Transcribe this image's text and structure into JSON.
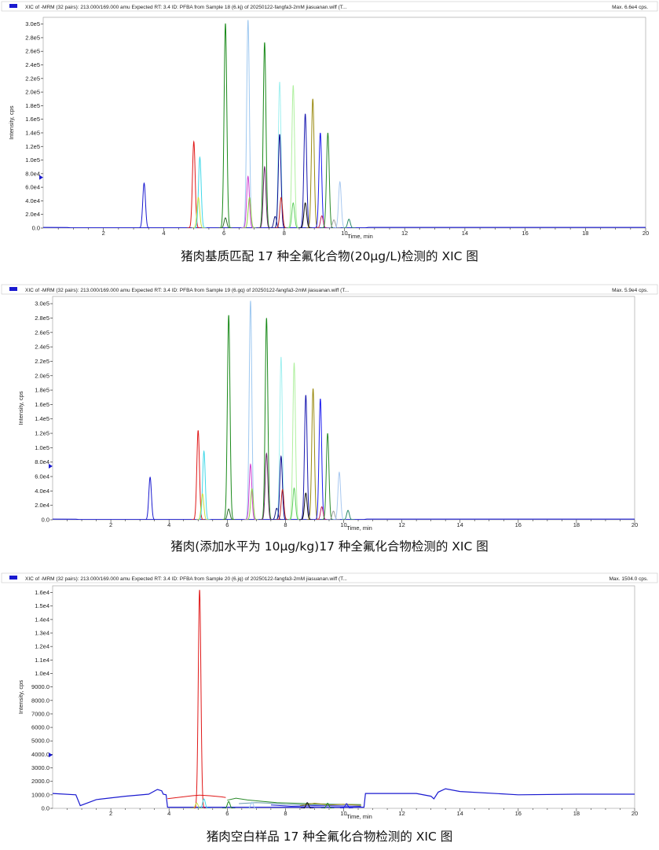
{
  "chart_data": [
    {
      "type": "line",
      "header": "XIC of -MRM (32 pairs): 213.000/169.000 amu Expected RT: 3.4 ID: PFBA from Sample 18 (6.kj) of 20250122-fangfa3-2mM jiasuanan.wiff (T...",
      "max_label": "Max. 6.6e4 cps.",
      "caption": "猪肉基质匹配 17 种全氟化合物(20μg/L)检测的 XIC 图",
      "xlabel": "Time, min",
      "ylabel": "Intensity, cps",
      "xlim": [
        0,
        20
      ],
      "ylim": [
        0,
        310000
      ],
      "x_ticks": [
        "2",
        "4",
        "6",
        "8",
        "10",
        "12",
        "14",
        "16",
        "18",
        "20"
      ],
      "y_ticks": [
        {
          "value": 0,
          "label": "0.0"
        },
        {
          "value": 20000,
          "label": "2.0e4"
        },
        {
          "value": 40000,
          "label": "4.0e4"
        },
        {
          "value": 60000,
          "label": "6.0e4"
        },
        {
          "value": 80000,
          "label": "8.0e4"
        },
        {
          "value": 100000,
          "label": "1.0e5"
        },
        {
          "value": 120000,
          "label": "1.2e5"
        },
        {
          "value": 140000,
          "label": "1.4e5"
        },
        {
          "value": 160000,
          "label": "1.6e5"
        },
        {
          "value": 180000,
          "label": "1.8e5"
        },
        {
          "value": 200000,
          "label": "2.0e5"
        },
        {
          "value": 220000,
          "label": "2.2e5"
        },
        {
          "value": 240000,
          "label": "2.4e5"
        },
        {
          "value": 260000,
          "label": "2.6e5"
        },
        {
          "value": 280000,
          "label": "2.8e5"
        },
        {
          "value": 300000,
          "label": "3.0e5"
        }
      ],
      "baseline": [
        {
          "x": 0,
          "y": 900
        },
        {
          "x": 0.8,
          "y": 800
        },
        {
          "x": 0.9,
          "y": 300
        },
        {
          "x": 10.7,
          "y": 300
        },
        {
          "x": 10.8,
          "y": 900
        },
        {
          "x": 20,
          "y": 900
        }
      ],
      "peaks": [
        {
          "rt": 3.35,
          "height": 66000,
          "color": "#1a1ad0"
        },
        {
          "rt": 5.0,
          "height": 127000,
          "color": "#e01818"
        },
        {
          "rt": 5.2,
          "height": 104000,
          "color": "#40d8e8"
        },
        {
          "rt": 5.15,
          "height": 45000,
          "color": "#c8e040"
        },
        {
          "rt": 6.05,
          "height": 301000,
          "color": "#1a8a1a"
        },
        {
          "rt": 6.05,
          "height": 15000,
          "color": "#2a6a2a"
        },
        {
          "rt": 6.8,
          "height": 306000,
          "color": "#9ec8f0"
        },
        {
          "rt": 6.8,
          "height": 76000,
          "color": "#d040d0"
        },
        {
          "rt": 6.85,
          "height": 45000,
          "color": "#90d040"
        },
        {
          "rt": 7.35,
          "height": 273000,
          "color": "#1a8a1a"
        },
        {
          "rt": 7.35,
          "height": 90000,
          "color": "#6a2a6a"
        },
        {
          "rt": 7.7,
          "height": 17000,
          "color": "#1a1a80"
        },
        {
          "rt": 7.85,
          "height": 215000,
          "color": "#a0f0f0"
        },
        {
          "rt": 7.85,
          "height": 138000,
          "color": "#0a0a90"
        },
        {
          "rt": 7.9,
          "height": 45000,
          "color": "#c02020"
        },
        {
          "rt": 8.3,
          "height": 210000,
          "color": "#b0f0a0"
        },
        {
          "rt": 8.3,
          "height": 37000,
          "color": "#60d060"
        },
        {
          "rt": 8.7,
          "height": 168000,
          "color": "#1a1ab0"
        },
        {
          "rt": 8.7,
          "height": 37000,
          "color": "#111111"
        },
        {
          "rt": 8.95,
          "height": 190000,
          "color": "#9a8a10"
        },
        {
          "rt": 9.2,
          "height": 140000,
          "color": "#1a1af0"
        },
        {
          "rt": 9.25,
          "height": 18000,
          "color": "#c02060"
        },
        {
          "rt": 9.45,
          "height": 140000,
          "color": "#2a8a2a"
        },
        {
          "rt": 9.65,
          "height": 12000,
          "color": "#a0a0a0"
        },
        {
          "rt": 9.85,
          "height": 68000,
          "color": "#a8c8f0"
        },
        {
          "rt": 10.15,
          "height": 13000,
          "color": "#2a8a6a"
        }
      ]
    },
    {
      "type": "line",
      "header": "XIC of -MRM (32 pairs): 213.000/169.000 amu Expected RT: 3.4 ID: PFBA from Sample 19 (6.gq) of 20250122-fangfa3-2mM jiasuanan.wiff (T...",
      "max_label": "Max. 5.9e4 cps.",
      "caption": "猪肉(添加水平为 10μg/kg)17 种全氟化合物检测的 XIC 图",
      "xlabel": "Time, min",
      "ylabel": "Intensity, cps",
      "xlim": [
        0,
        20
      ],
      "ylim": [
        0,
        310000
      ],
      "x_ticks": [
        "2",
        "4",
        "6",
        "8",
        "10",
        "12",
        "14",
        "16",
        "18",
        "20"
      ],
      "y_ticks": [
        {
          "value": 0,
          "label": "0.0"
        },
        {
          "value": 20000,
          "label": "2.0e4"
        },
        {
          "value": 40000,
          "label": "4.0e4"
        },
        {
          "value": 60000,
          "label": "6.0e4"
        },
        {
          "value": 80000,
          "label": "8.0e4"
        },
        {
          "value": 100000,
          "label": "1.0e5"
        },
        {
          "value": 120000,
          "label": "1.2e5"
        },
        {
          "value": 140000,
          "label": "1.4e5"
        },
        {
          "value": 160000,
          "label": "1.6e5"
        },
        {
          "value": 180000,
          "label": "1.8e5"
        },
        {
          "value": 200000,
          "label": "2.0e5"
        },
        {
          "value": 220000,
          "label": "2.2e5"
        },
        {
          "value": 240000,
          "label": "2.4e5"
        },
        {
          "value": 260000,
          "label": "2.6e5"
        },
        {
          "value": 280000,
          "label": "2.8e5"
        },
        {
          "value": 300000,
          "label": "3.0e5"
        }
      ],
      "baseline": [
        {
          "x": 0,
          "y": 900
        },
        {
          "x": 0.8,
          "y": 800
        },
        {
          "x": 0.9,
          "y": 300
        },
        {
          "x": 10.7,
          "y": 300
        },
        {
          "x": 10.8,
          "y": 900
        },
        {
          "x": 20,
          "y": 900
        }
      ],
      "peaks": [
        {
          "rt": 3.35,
          "height": 59000,
          "color": "#1a1ad0"
        },
        {
          "rt": 5.0,
          "height": 124000,
          "color": "#e01818"
        },
        {
          "rt": 5.2,
          "height": 95000,
          "color": "#40d8e8"
        },
        {
          "rt": 5.15,
          "height": 36000,
          "color": "#c8e040"
        },
        {
          "rt": 6.05,
          "height": 284000,
          "color": "#1a8a1a"
        },
        {
          "rt": 6.05,
          "height": 15000,
          "color": "#2a6a2a"
        },
        {
          "rt": 6.8,
          "height": 304000,
          "color": "#9ec8f0"
        },
        {
          "rt": 6.8,
          "height": 77000,
          "color": "#d040d0"
        },
        {
          "rt": 6.85,
          "height": 43000,
          "color": "#90d040"
        },
        {
          "rt": 7.35,
          "height": 280000,
          "color": "#1a8a1a"
        },
        {
          "rt": 7.35,
          "height": 92000,
          "color": "#6a2a6a"
        },
        {
          "rt": 7.7,
          "height": 16000,
          "color": "#1a1a80"
        },
        {
          "rt": 7.85,
          "height": 226000,
          "color": "#a0f0f0"
        },
        {
          "rt": 7.85,
          "height": 88000,
          "color": "#0a0a90"
        },
        {
          "rt": 7.9,
          "height": 42000,
          "color": "#c02020"
        },
        {
          "rt": 8.3,
          "height": 218000,
          "color": "#b0f0a0"
        },
        {
          "rt": 8.3,
          "height": 44000,
          "color": "#60d060"
        },
        {
          "rt": 8.7,
          "height": 173000,
          "color": "#1a1ab0"
        },
        {
          "rt": 8.7,
          "height": 37000,
          "color": "#111111"
        },
        {
          "rt": 8.95,
          "height": 182000,
          "color": "#9a8a10"
        },
        {
          "rt": 9.2,
          "height": 168000,
          "color": "#1a1af0"
        },
        {
          "rt": 9.25,
          "height": 18000,
          "color": "#c02060"
        },
        {
          "rt": 9.45,
          "height": 120000,
          "color": "#2a8a2a"
        },
        {
          "rt": 9.65,
          "height": 12000,
          "color": "#a0a0a0"
        },
        {
          "rt": 9.85,
          "height": 66000,
          "color": "#a8c8f0"
        },
        {
          "rt": 10.15,
          "height": 13000,
          "color": "#2a8a6a"
        }
      ]
    },
    {
      "type": "line",
      "header": "XIC of -MRM (32 pairs): 213.000/169.000 amu Expected RT: 3.4 ID: PFBA from Sample 20 (6.jq) of 20250122-fangfa3-2mM jiasuanan.wiff (T...",
      "max_label": "Max. 1504.0 cps.",
      "caption": "猪肉空白样品 17 种全氟化合物检测的 XIC 图",
      "xlabel": "Time, min",
      "ylabel": "Intensity, cps",
      "xlim": [
        0,
        20
      ],
      "ylim": [
        0,
        16500
      ],
      "x_ticks": [
        "2",
        "4",
        "6",
        "8",
        "10",
        "12",
        "14",
        "16",
        "18",
        "20"
      ],
      "y_ticks": [
        {
          "value": 0,
          "label": "0.0"
        },
        {
          "value": 1000,
          "label": "1000.0"
        },
        {
          "value": 2000,
          "label": "2000.0"
        },
        {
          "value": 3000,
          "label": "3000.0"
        },
        {
          "value": 4000,
          "label": "4000.0"
        },
        {
          "value": 5000,
          "label": "5000.0"
        },
        {
          "value": 6000,
          "label": "6000.0"
        },
        {
          "value": 7000,
          "label": "7000.0"
        },
        {
          "value": 8000,
          "label": "8000.0"
        },
        {
          "value": 9000,
          "label": "9000.0"
        },
        {
          "value": 10000,
          "label": "1.0e4"
        },
        {
          "value": 11000,
          "label": "1.1e4"
        },
        {
          "value": 12000,
          "label": "1.2e4"
        },
        {
          "value": 13000,
          "label": "1.3e4"
        },
        {
          "value": 14000,
          "label": "1.4e4"
        },
        {
          "value": 15000,
          "label": "1.5e4"
        },
        {
          "value": 16000,
          "label": "1.6e4"
        }
      ],
      "baseline": [
        {
          "x": 0,
          "y": 1100
        },
        {
          "x": 0.8,
          "y": 1000
        },
        {
          "x": 0.95,
          "y": 200
        },
        {
          "x": 1.5,
          "y": 650
        },
        {
          "x": 2.5,
          "y": 900
        },
        {
          "x": 3.3,
          "y": 1050
        },
        {
          "x": 3.6,
          "y": 1400
        },
        {
          "x": 3.75,
          "y": 1300
        },
        {
          "x": 3.8,
          "y": 1050
        },
        {
          "x": 3.9,
          "y": 1000
        },
        {
          "x": 3.95,
          "y": 80
        },
        {
          "x": 10.7,
          "y": 80
        },
        {
          "x": 10.75,
          "y": 1100
        },
        {
          "x": 12.5,
          "y": 1100
        },
        {
          "x": 13.0,
          "y": 900
        },
        {
          "x": 13.1,
          "y": 700
        },
        {
          "x": 13.25,
          "y": 1200
        },
        {
          "x": 13.5,
          "y": 1450
        },
        {
          "x": 14.0,
          "y": 1250
        },
        {
          "x": 16.0,
          "y": 1000
        },
        {
          "x": 18.0,
          "y": 1050
        },
        {
          "x": 20,
          "y": 1050
        }
      ],
      "segments": [
        {
          "color": "#e01818",
          "points": [
            {
              "x": 3.95,
              "y": 720
            },
            {
              "x": 4.4,
              "y": 830
            },
            {
              "x": 4.8,
              "y": 930
            },
            {
              "x": 5.05,
              "y": 980
            },
            {
              "x": 5.4,
              "y": 930
            },
            {
              "x": 5.8,
              "y": 850
            },
            {
              "x": 5.95,
              "y": 800
            }
          ]
        },
        {
          "color": "#2a8a2a",
          "points": [
            {
              "x": 6.0,
              "y": 600
            },
            {
              "x": 6.3,
              "y": 750
            },
            {
              "x": 6.7,
              "y": 620
            },
            {
              "x": 7.2,
              "y": 520
            },
            {
              "x": 7.7,
              "y": 420
            },
            {
              "x": 8.3,
              "y": 380
            },
            {
              "x": 9.0,
              "y": 330
            },
            {
              "x": 9.8,
              "y": 300
            },
            {
              "x": 10.6,
              "y": 280
            }
          ]
        },
        {
          "color": "#6a9ab0",
          "points": [
            {
              "x": 6.4,
              "y": 350
            },
            {
              "x": 7.0,
              "y": 420
            },
            {
              "x": 7.5,
              "y": 380
            },
            {
              "x": 8.0,
              "y": 300
            },
            {
              "x": 8.8,
              "y": 260
            },
            {
              "x": 9.6,
              "y": 300
            },
            {
              "x": 10.6,
              "y": 250
            }
          ]
        },
        {
          "color": "#1a1ad0",
          "points": [
            {
              "x": 7.5,
              "y": 250
            },
            {
              "x": 8.2,
              "y": 150
            },
            {
              "x": 9.0,
              "y": 200
            },
            {
              "x": 9.8,
              "y": 180
            },
            {
              "x": 10.6,
              "y": 150
            }
          ]
        },
        {
          "color": "#9a8a10",
          "points": [
            {
              "x": 8.5,
              "y": 200
            },
            {
              "x": 9.0,
              "y": 380
            },
            {
              "x": 9.5,
              "y": 250
            },
            {
              "x": 10.0,
              "y": 300
            },
            {
              "x": 10.6,
              "y": 220
            }
          ]
        }
      ],
      "peaks": [
        {
          "rt": 5.05,
          "height": 16200,
          "color": "#e01818"
        },
        {
          "rt": 5.2,
          "height": 700,
          "color": "#40d8e8"
        },
        {
          "rt": 4.95,
          "height": 400,
          "color": "#c8e040"
        },
        {
          "rt": 6.05,
          "height": 500,
          "color": "#1a8a1a"
        },
        {
          "rt": 6.85,
          "height": 450,
          "color": "#9ec8f0"
        },
        {
          "rt": 8.75,
          "height": 420,
          "color": "#111111"
        },
        {
          "rt": 9.45,
          "height": 380,
          "color": "#2a8a2a"
        },
        {
          "rt": 10.1,
          "height": 350,
          "color": "#1a1af0"
        }
      ]
    }
  ]
}
